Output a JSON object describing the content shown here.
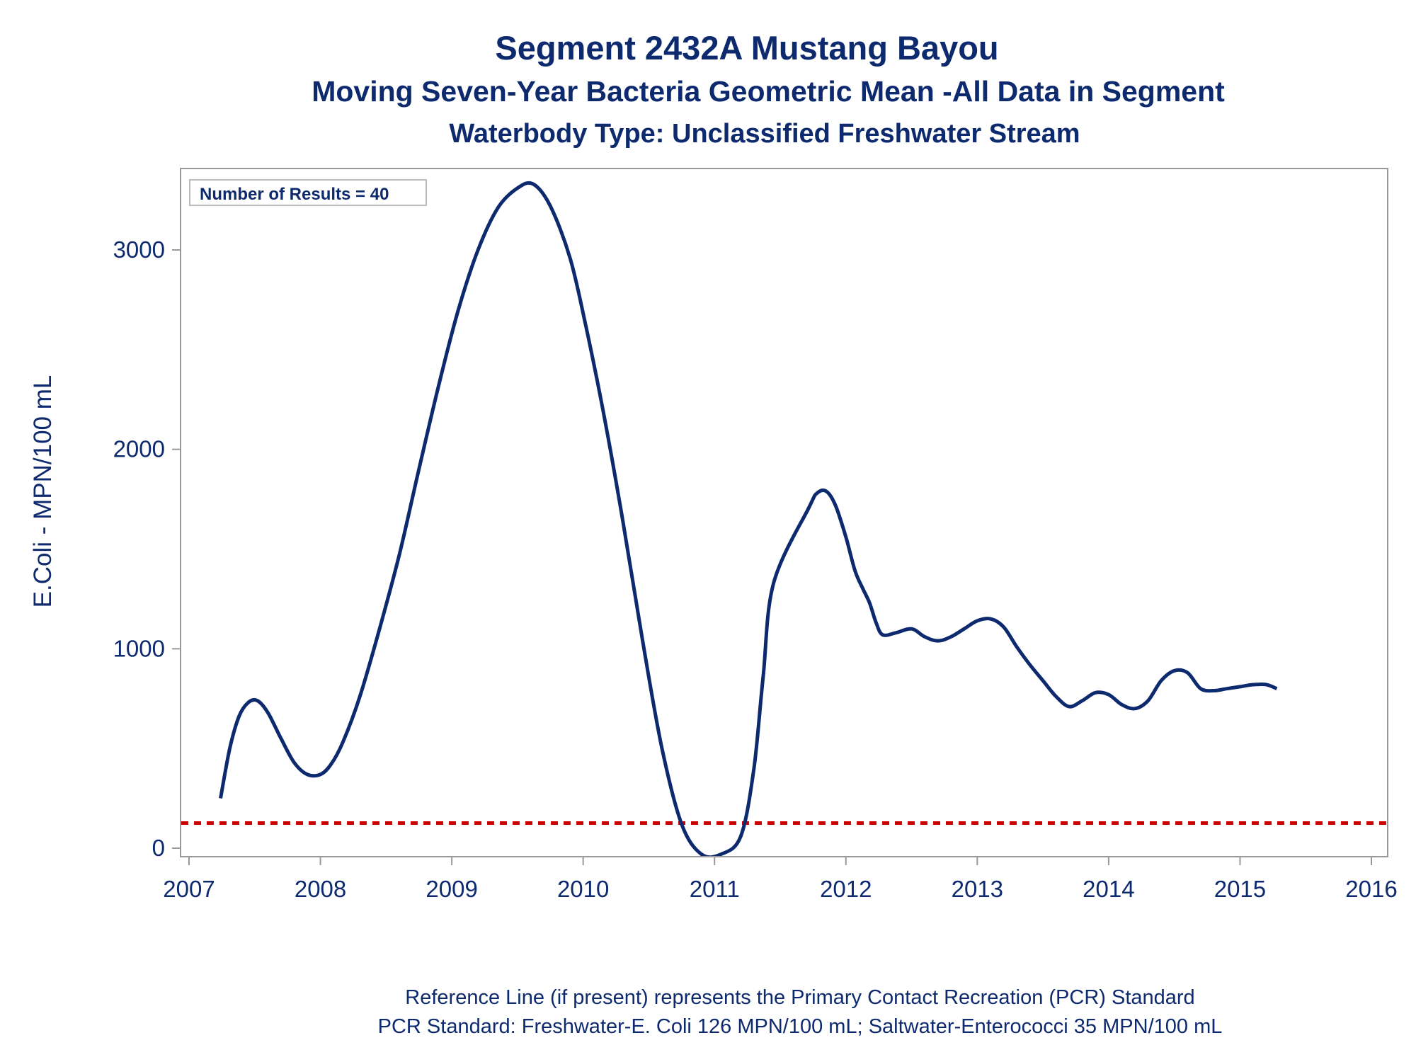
{
  "title": "Segment 2432A    Mustang Bayou",
  "subtitle": "Moving Seven-Year Bacteria Geometric Mean -All Data in Segment",
  "subtitle2": "Waterbody Type: Unclassified Freshwater Stream",
  "footnotes": [
    "Reference Line (if present) represents the Primary Contact Recreation (PCR) Standard",
    "PCR Standard: Freshwater-E. Coli 126 MPN/100 mL; Saltwater-Enterococci 35 MPN/100 mL"
  ],
  "colors": {
    "text": "#0e2a6e",
    "series": "#0e2a6e",
    "reference": "#cc0000",
    "frame": "#999999"
  },
  "chart_data": {
    "type": "line",
    "title": "Segment 2432A    Mustang Bayou",
    "xlabel": "",
    "ylabel": "E.Coli - MPN/100 mL",
    "xlim": [
      2007,
      2016
    ],
    "ylim": [
      -35,
      3400
    ],
    "xticks": [
      2007,
      2008,
      2009,
      2010,
      2011,
      2012,
      2013,
      2014,
      2015,
      2016
    ],
    "yticks": [
      0,
      1000,
      2000,
      3000
    ],
    "annotation": "Number of Results = 40",
    "reference_line": {
      "y": 126,
      "style": "dashed"
    },
    "grid": false,
    "series": [
      {
        "x": [
          2007.24,
          2007.31,
          2007.38,
          2007.45,
          2007.52,
          2007.6,
          2007.7,
          2007.8,
          2007.9,
          2008.0,
          2008.08,
          2008.17,
          2008.3,
          2008.45,
          2008.6,
          2008.75,
          2008.9,
          2009.05,
          2009.2,
          2009.35,
          2009.5,
          2009.62,
          2009.75,
          2009.9,
          2010.02,
          2010.15,
          2010.3,
          2010.45,
          2010.6,
          2010.75,
          2010.9,
          2011.05,
          2011.2,
          2011.3,
          2011.37,
          2011.45,
          2011.72,
          2011.78,
          2011.85,
          2011.92,
          2012.0,
          2012.07,
          2012.13,
          2012.18,
          2012.23,
          2012.28,
          2012.38,
          2012.5,
          2012.6,
          2012.7,
          2012.8,
          2012.9,
          2013.0,
          2013.1,
          2013.2,
          2013.3,
          2013.4,
          2013.5,
          2013.6,
          2013.7,
          2013.8,
          2013.9,
          2014.0,
          2014.1,
          2014.2,
          2014.3,
          2014.4,
          2014.5,
          2014.6,
          2014.7,
          2014.8,
          2014.9,
          2015.0,
          2015.1,
          2015.2,
          2015.28
        ],
        "y": [
          250,
          500,
          660,
          730,
          740,
          680,
          550,
          430,
          370,
          370,
          420,
          530,
          760,
          1100,
          1470,
          1900,
          2320,
          2700,
          3000,
          3210,
          3310,
          3330,
          3220,
          2960,
          2620,
          2200,
          1650,
          1050,
          500,
          120,
          -30,
          -30,
          60,
          400,
          860,
          1330,
          1710,
          1780,
          1790,
          1720,
          1560,
          1390,
          1300,
          1230,
          1130,
          1070,
          1080,
          1100,
          1060,
          1040,
          1060,
          1100,
          1140,
          1150,
          1110,
          1010,
          920,
          840,
          760,
          710,
          740,
          780,
          770,
          720,
          700,
          740,
          840,
          890,
          880,
          800,
          790,
          800,
          810,
          820,
          820,
          800
        ]
      }
    ]
  }
}
